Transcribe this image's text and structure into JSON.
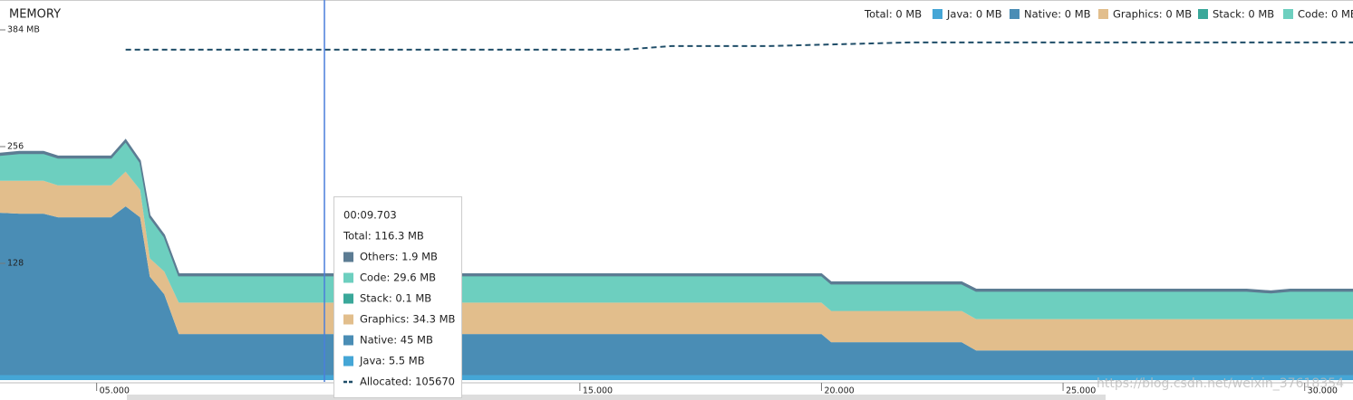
{
  "chart_data": {
    "type": "area",
    "title": "MEMORY",
    "legend": [
      "Total: 0 MB",
      "Java: 0 MB",
      "Native: 0 MB",
      "Graphics: 0 MB",
      "Stack: 0 MB",
      "Code: 0 MB"
    ],
    "x": [
      3.0,
      3.4,
      3.9,
      4.2,
      5.3,
      5.6,
      5.9,
      6.1,
      6.4,
      6.7,
      20.0,
      20.2,
      22.9,
      23.2,
      28.8,
      29.3,
      29.7,
      31.0
    ],
    "series": [
      {
        "color": "#45a6d6",
        "values": [
          5.5,
          5.5,
          5.5,
          5.5,
          5.5,
          5.5,
          5.5,
          5.5,
          5.5,
          5.5,
          5.5,
          5.5,
          5.5,
          5.5,
          5.5,
          5.5,
          5.5,
          5.5
        ]
      },
      {
        "color": "#4a8db5",
        "values": [
          178,
          177,
          177,
          173,
          173,
          185,
          173,
          108,
          88.5,
          45,
          45,
          36,
          36,
          27,
          27,
          27,
          27,
          27
        ]
      },
      {
        "color": "#e2be8c",
        "values": [
          35,
          36,
          36,
          35,
          35,
          38,
          30,
          20,
          25,
          34.3,
          34.3,
          34.3,
          34.3,
          34.3,
          34.3,
          34.3,
          34.3,
          34.3
        ]
      },
      {
        "color": "#3aa89a",
        "values": [
          0.1,
          0.1,
          0.1,
          0.1,
          0.1,
          0.1,
          0.1,
          0.1,
          0.1,
          0.1,
          0.1,
          0.1,
          0.1,
          0.1,
          0.1,
          0.1,
          0.1,
          0.1
        ]
      },
      {
        "color": "#6dcfbf",
        "values": [
          28,
          30,
          30,
          30,
          30,
          33,
          30,
          45,
          38,
          29.6,
          29.6,
          29.7,
          29.7,
          30.7,
          30.7,
          28.8,
          30.7,
          30.7
        ]
      },
      {
        "color": "#5c7c93",
        "values": [
          1.9,
          1.9,
          1.9,
          1.9,
          1.9,
          1.9,
          1.9,
          1.9,
          1.9,
          1.9,
          1.9,
          1.9,
          1.9,
          1.9,
          1.9,
          1.9,
          1.9,
          1.9
        ]
      },
      {
        "color": "#1f4d68",
        "axis": "y2",
        "x": [
          5.6,
          15.9,
          16.9,
          18.9,
          21.9,
          31.0
        ],
        "values": [
          105670,
          105670,
          106830,
          106830,
          108000,
          108000
        ]
      }
    ],
    "xlim": [
      3,
      31
    ],
    "xticks": [
      {
        "value": 5,
        "label": "05.000"
      },
      {
        "value": 15,
        "label": "15.000"
      },
      {
        "value": 20,
        "label": "20.000"
      },
      {
        "value": 25,
        "label": "25.000"
      },
      {
        "value": 30,
        "label": "30.000"
      }
    ],
    "ylim": [
      0,
      384
    ],
    "yticks": [
      {
        "value": 384,
        "label": "384 MB"
      },
      256,
      128
    ],
    "y2lim": [
      0,
      112000
    ],
    "tooltip": {
      "time": "00:09.703",
      "total": "Total: 116.3 MB",
      "lines": [
        "Others: 1.9 MB",
        "Code: 29.6 MB",
        "Stack: 0.1 MB",
        "Graphics: 34.3 MB",
        "Native: 45 MB",
        "Java: 5.5 MB",
        "Allocated: 105670"
      ]
    },
    "watermark": "https://blog.csdn.net/weixin_37618354"
  }
}
